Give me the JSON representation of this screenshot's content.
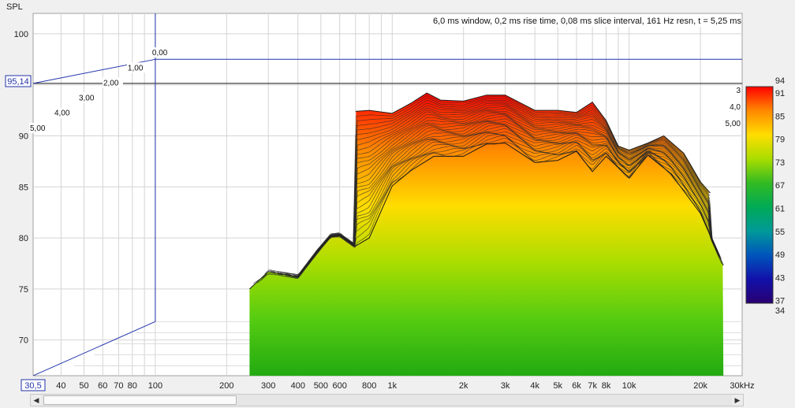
{
  "info_text": "6,0 ms window, 0,2 ms rise time, 0,08 ms slice interval, 161 Hz resn, t = 5,25 ms",
  "y_axis": {
    "label": "SPL",
    "ticks": [
      "100",
      "90",
      "85",
      "80",
      "75",
      "70"
    ],
    "cursor_value": "95,14",
    "corner_value": "30,5"
  },
  "x_axis": {
    "ticks": [
      "40",
      "50",
      "60",
      "70",
      "80",
      "100",
      "200",
      "300",
      "400",
      "500",
      "600",
      "800",
      "1k",
      "2k",
      "3k",
      "4k",
      "5k",
      "6k",
      "7k",
      "8k",
      "10k",
      "20k",
      "30kHz"
    ]
  },
  "time_axis": {
    "left_labels": [
      "0,00",
      "1,00",
      "2,00",
      "3,00",
      "4,00",
      "5,00"
    ],
    "right_labels": [
      "3",
      "4,0",
      "5,00"
    ]
  },
  "color_scale": {
    "ticks": [
      "94",
      "91",
      "85",
      "79",
      "73",
      "67",
      "61",
      "55",
      "49",
      "43",
      "37",
      "34"
    ],
    "colors": [
      "#ff0000",
      "#ff8800",
      "#ffdd00",
      "#aadd00",
      "#33bb22",
      "#00aa55",
      "#009999",
      "#0055bb",
      "#1111aa",
      "#2a0070"
    ]
  },
  "chart_data": {
    "type": "area",
    "title": "6,0 ms window, 0,2 ms rise time, 0,08 ms slice interval, 161 Hz resn, t = 5,25 ms",
    "xlabel": "",
    "ylabel": "SPL",
    "x_scale": "log",
    "xlim": [
      30.5,
      30000
    ],
    "ylim": [
      66.5,
      102
    ],
    "zlim": [
      0,
      5.25
    ],
    "grid": true,
    "colormap_range": [
      34,
      94
    ],
    "series": [
      {
        "name": "",
        "values": [
          [
            250,
            75.0
          ],
          [
            300,
            76.7
          ],
          [
            400,
            76.2
          ],
          [
            480,
            78.6
          ],
          [
            550,
            80.2
          ],
          [
            600,
            80.3
          ],
          [
            700,
            79.2
          ],
          [
            800,
            80.0
          ],
          [
            1000,
            85.1
          ],
          [
            1200,
            86.6
          ],
          [
            1500,
            88.0
          ],
          [
            2000,
            88.0
          ],
          [
            2500,
            89.2
          ],
          [
            3000,
            89.3
          ],
          [
            4000,
            87.4
          ],
          [
            5000,
            87.6
          ],
          [
            6000,
            88.5
          ],
          [
            7000,
            86.5
          ],
          [
            8000,
            88.0
          ],
          [
            10000,
            85.9
          ],
          [
            12000,
            88.1
          ],
          [
            15000,
            86.3
          ],
          [
            20000,
            82.4
          ],
          [
            25000,
            77.3
          ]
        ]
      },
      {
        "name": "",
        "values": [
          [
            700,
            92.4
          ],
          [
            800,
            92.5
          ],
          [
            1000,
            92.2
          ],
          [
            1200,
            93.2
          ],
          [
            1400,
            94.2
          ],
          [
            1600,
            93.5
          ],
          [
            2000,
            93.4
          ],
          [
            2500,
            94.0
          ],
          [
            3000,
            94.0
          ],
          [
            4000,
            92.5
          ],
          [
            5000,
            92.5
          ],
          [
            6000,
            92.3
          ],
          [
            7000,
            93.3
          ],
          [
            8000,
            91.5
          ],
          [
            9000,
            89.0
          ],
          [
            10000,
            88.6
          ],
          [
            12000,
            89.3
          ],
          [
            14000,
            90.0
          ],
          [
            17000,
            88.3
          ],
          [
            20000,
            85.5
          ],
          [
            22000,
            84.4
          ]
        ]
      }
    ]
  }
}
